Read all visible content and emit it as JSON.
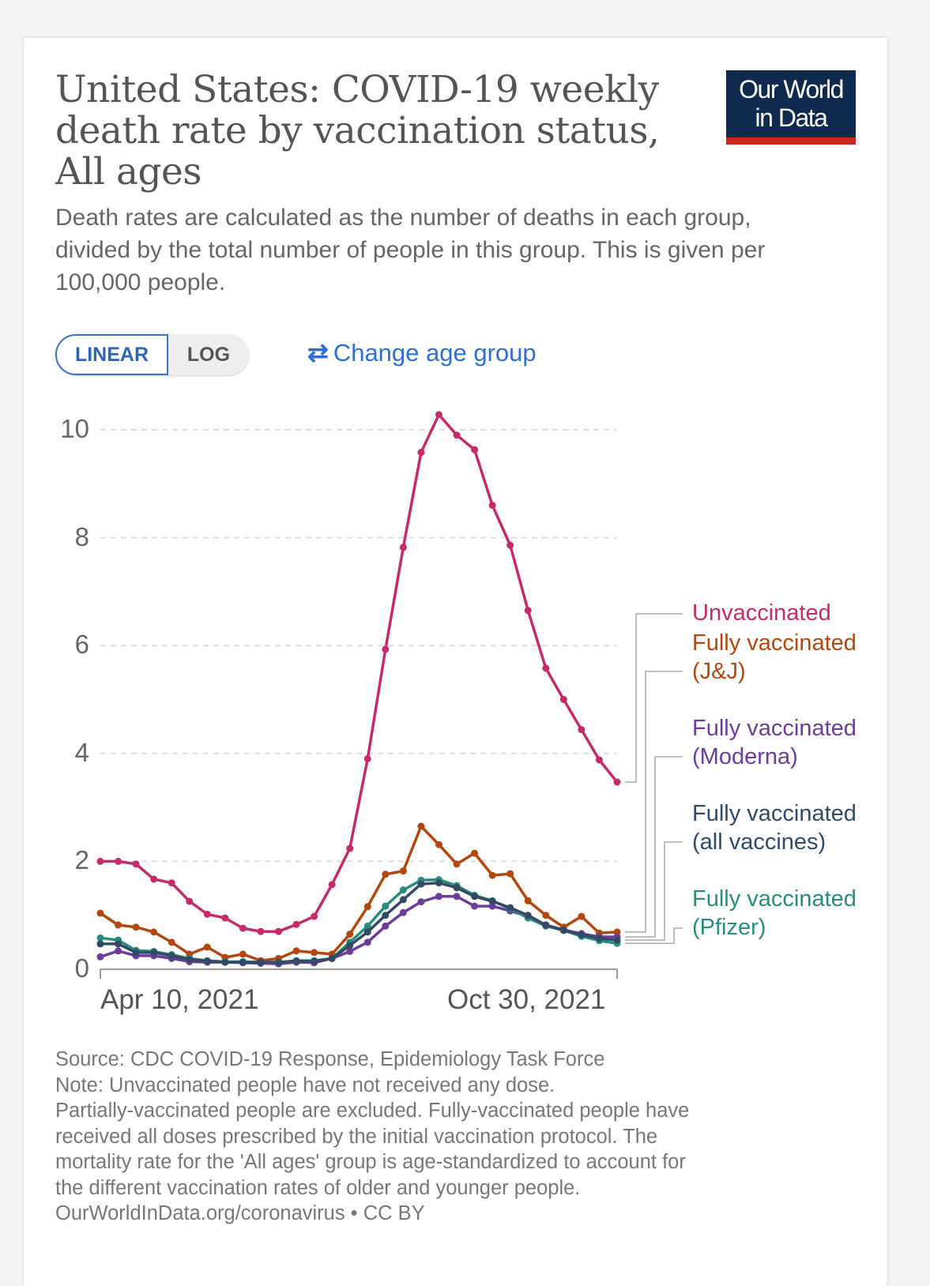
{
  "header": {
    "title": "United States: COVID-19 weekly death rate by vaccination status, All ages",
    "subtitle": "Death rates are calculated as the number of deaths in each group, divided by the total number of people in this group. This is given per 100,000 people.",
    "logo_line1": "Our World",
    "logo_line2": "in Data"
  },
  "controls": {
    "linear_label": "LINEAR",
    "log_label": "LOG",
    "scale_selected": "LINEAR",
    "change_age_icon": "swap-arrows-icon",
    "change_age_label": "Change age group"
  },
  "chart_data": {
    "type": "line",
    "title": "United States: COVID-19 weekly death rate by vaccination status, All ages",
    "xlabel": "",
    "ylabel": "",
    "ylim": [
      0,
      10
    ],
    "yticks": [
      "0",
      "2",
      "4",
      "6",
      "8",
      "10"
    ],
    "xtick_labels": [
      "Apr 10, 2021",
      "Oct 30, 2021"
    ],
    "grid": "horizontal dashed",
    "legend": "right",
    "x": [
      "2021-04-10",
      "2021-04-17",
      "2021-04-24",
      "2021-05-01",
      "2021-05-08",
      "2021-05-15",
      "2021-05-22",
      "2021-05-29",
      "2021-06-05",
      "2021-06-12",
      "2021-06-19",
      "2021-06-26",
      "2021-07-03",
      "2021-07-10",
      "2021-07-17",
      "2021-07-24",
      "2021-07-31",
      "2021-08-07",
      "2021-08-14",
      "2021-08-21",
      "2021-08-28",
      "2021-09-04",
      "2021-09-11",
      "2021-09-18",
      "2021-09-25",
      "2021-10-02",
      "2021-10-09",
      "2021-10-16",
      "2021-10-23",
      "2021-10-30"
    ],
    "series": [
      {
        "name": "Unvaccinated",
        "color": "#c52a6a",
        "values": [
          2.0,
          2.0,
          1.95,
          1.67,
          1.6,
          1.26,
          1.02,
          0.95,
          0.76,
          0.7,
          0.7,
          0.83,
          0.98,
          1.57,
          2.24,
          3.9,
          5.93,
          7.82,
          9.58,
          10.28,
          9.9,
          9.63,
          8.6,
          7.86,
          6.65,
          5.58,
          5.0,
          4.44,
          3.88,
          3.47
        ]
      },
      {
        "name": "Fully vaccinated (J&J)",
        "color": "#b2480f",
        "values": [
          1.04,
          0.82,
          0.78,
          0.69,
          0.5,
          0.28,
          0.41,
          0.22,
          0.28,
          0.16,
          0.2,
          0.34,
          0.31,
          0.28,
          0.65,
          1.16,
          1.76,
          1.82,
          2.65,
          2.31,
          1.95,
          2.15,
          1.74,
          1.77,
          1.27,
          1.0,
          0.78,
          0.98,
          0.67,
          0.69
        ]
      },
      {
        "name": "Fully vaccinated (Moderna)",
        "color": "#6b3d9a",
        "values": [
          0.23,
          0.34,
          0.25,
          0.25,
          0.2,
          0.14,
          0.13,
          0.13,
          0.12,
          0.11,
          0.1,
          0.13,
          0.12,
          0.2,
          0.33,
          0.5,
          0.8,
          1.05,
          1.25,
          1.35,
          1.35,
          1.17,
          1.17,
          1.08,
          0.98,
          0.82,
          0.73,
          0.66,
          0.6,
          0.6
        ]
      },
      {
        "name": "Fully vaccinated (all vaccines)",
        "color": "#334a66",
        "values": [
          0.47,
          0.47,
          0.31,
          0.31,
          0.25,
          0.18,
          0.15,
          0.13,
          0.13,
          0.13,
          0.13,
          0.15,
          0.15,
          0.2,
          0.44,
          0.69,
          1.0,
          1.29,
          1.58,
          1.6,
          1.51,
          1.35,
          1.26,
          1.14,
          1.0,
          0.82,
          0.72,
          0.64,
          0.57,
          0.54
        ]
      },
      {
        "name": "Fully vaccinated (Pfizer)",
        "color": "#2a8c7e",
        "values": [
          0.58,
          0.54,
          0.35,
          0.33,
          0.27,
          0.2,
          0.16,
          0.14,
          0.14,
          0.13,
          0.13,
          0.16,
          0.16,
          0.2,
          0.5,
          0.8,
          1.17,
          1.47,
          1.65,
          1.66,
          1.55,
          1.37,
          1.27,
          1.12,
          0.95,
          0.8,
          0.72,
          0.61,
          0.53,
          0.48
        ]
      }
    ]
  },
  "footer": {
    "source": "Source: CDC COVID-19 Response, Epidemiology Task Force",
    "note1": "Note: Unvaccinated people have not received any dose.",
    "note2": "Partially-vaccinated people are excluded. Fully-vaccinated people have",
    "note3": "received all doses prescribed by the initial vaccination protocol. The",
    "note4": "mortality rate for the 'All ages' group is age-standardized to account for",
    "note5": "the different vaccination rates of older and younger people.",
    "link": "OurWorldInData.org/coronavirus • CC BY"
  }
}
